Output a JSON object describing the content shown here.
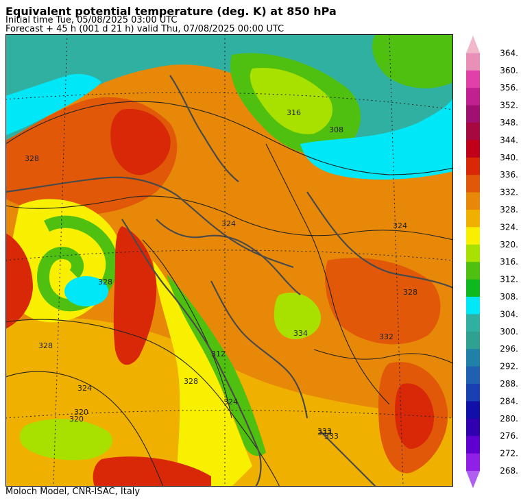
{
  "header": {
    "title": "Equivalent potential temperature (deg. K) at 850 hPa",
    "initial_time": "Initial time  Tue, 05/08/2025  03:00 UTC",
    "forecast": "Forecast  +  45 h  (001 d 21 h)  valid Thu, 07/08/2025 00:00 UTC"
  },
  "footer": {
    "credit": "Moloch Model, CNR-ISAC, Italy"
  },
  "legend": {
    "labels": [
      "364.",
      "360.",
      "356.",
      "352.",
      "348.",
      "344.",
      "340.",
      "336.",
      "332.",
      "328.",
      "324.",
      "320.",
      "316.",
      "312.",
      "308.",
      "304.",
      "300.",
      "296.",
      "292.",
      "288.",
      "284.",
      "280.",
      "276.",
      "272.",
      "268."
    ],
    "colors": [
      "#f0b8c8",
      "#e890b8",
      "#e040a8",
      "#c02090",
      "#a01070",
      "#a80840",
      "#c00018",
      "#d82808",
      "#e05808",
      "#e88808",
      "#f0b000",
      "#f8f000",
      "#a8e000",
      "#50c010",
      "#10b820",
      "#00e8f8",
      "#30b0a0",
      "#30a090",
      "#2080a8",
      "#2060b0",
      "#1840b0",
      "#1010a8",
      "#3000b0",
      "#6000d0",
      "#9020e8",
      "#b060f0"
    ]
  },
  "map": {
    "contour_labels": [
      "316",
      "308",
      "324",
      "324",
      "328",
      "320",
      "328",
      "312",
      "324",
      "328",
      "328",
      "332",
      "334",
      "333",
      "324",
      "320",
      "328",
      "333",
      "333",
      "324"
    ]
  }
}
